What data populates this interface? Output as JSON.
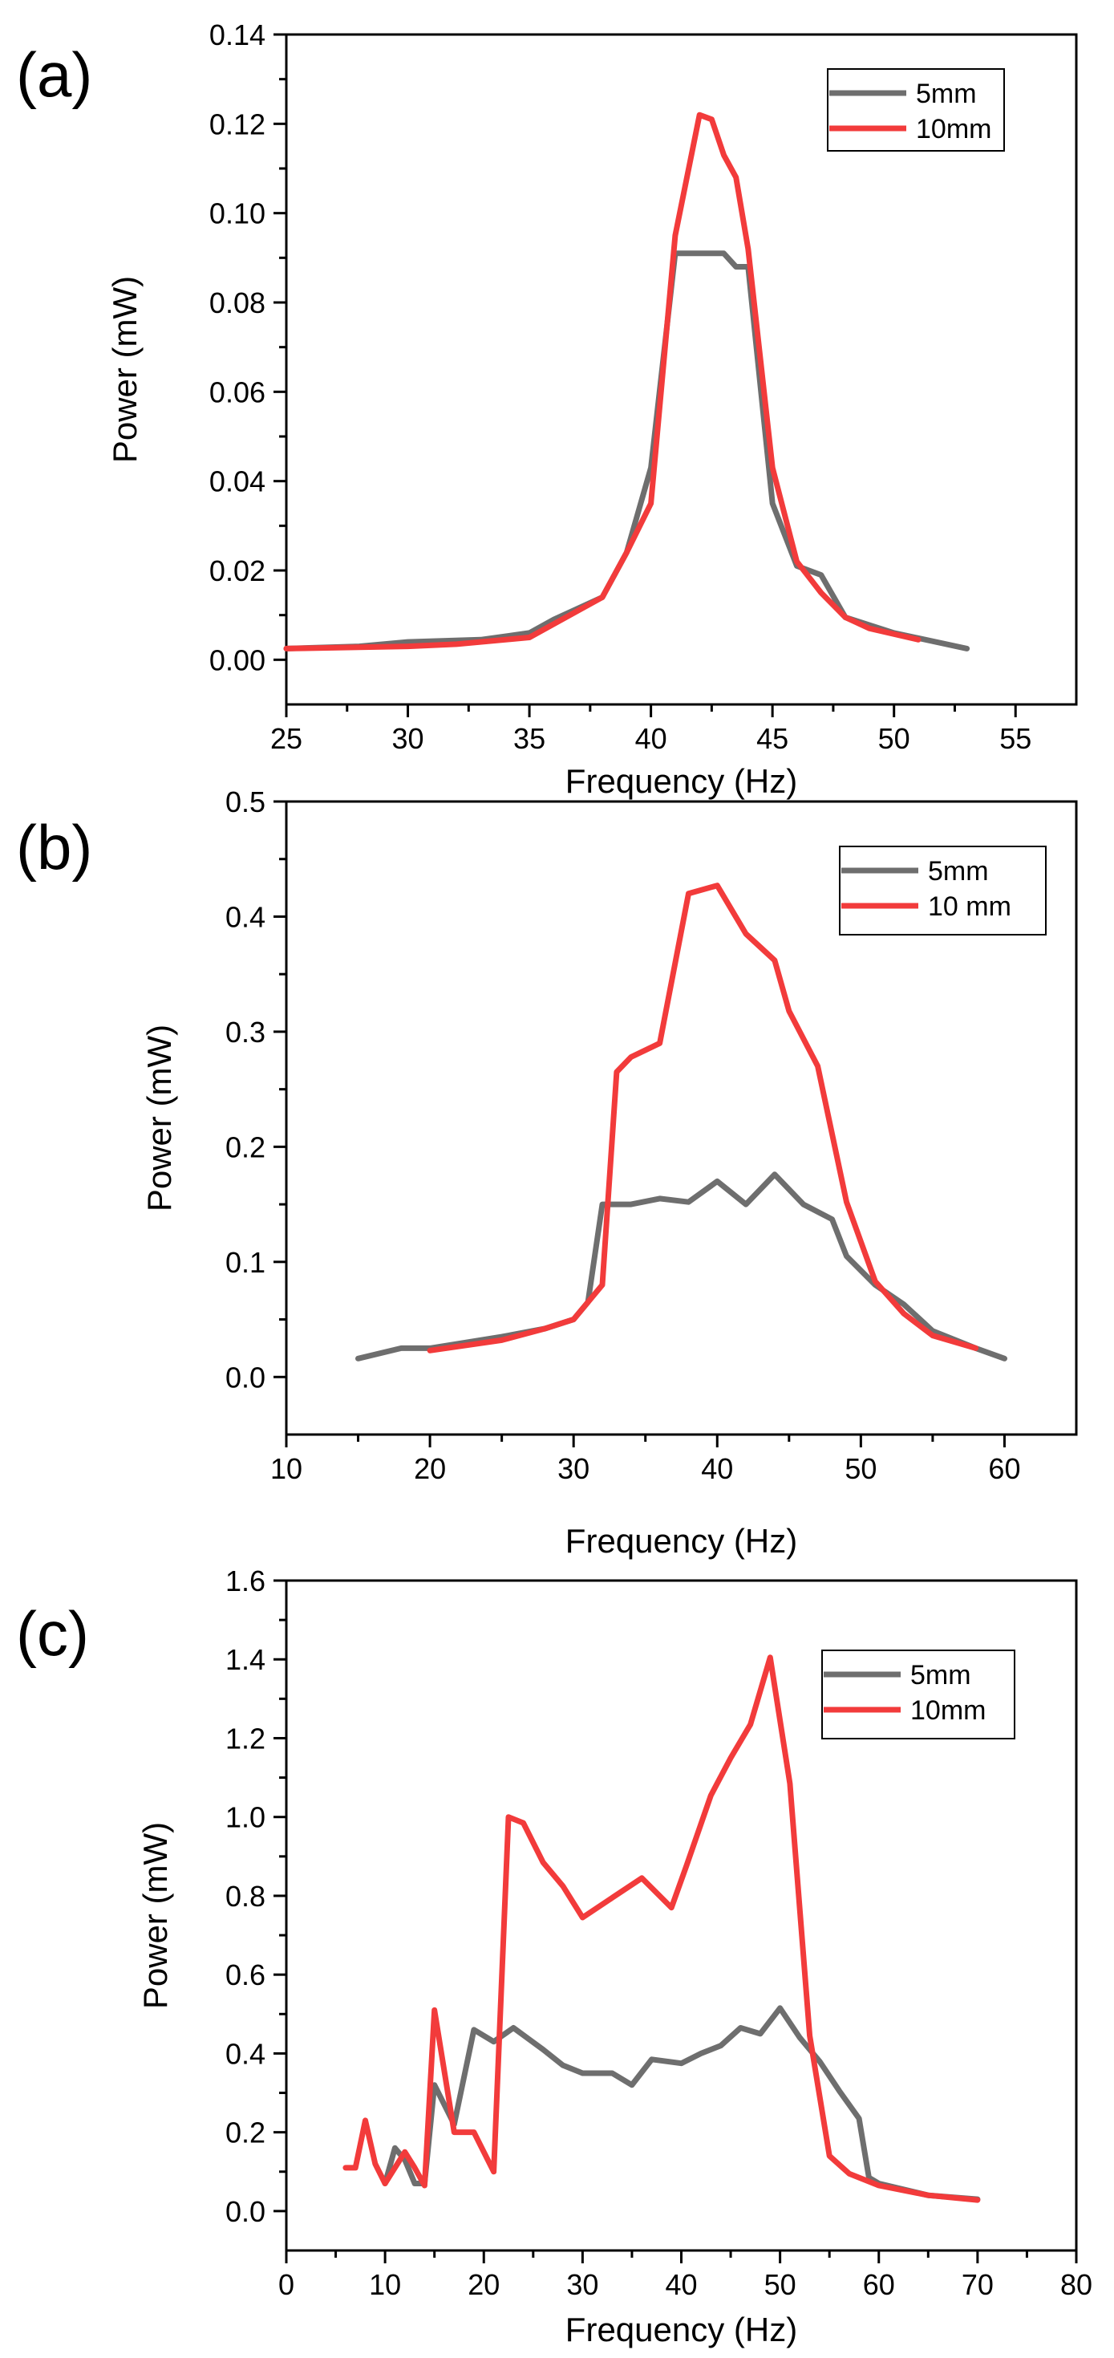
{
  "figure": {
    "colors": {
      "series_5mm": "#6e6e6e",
      "series_10mm": "#f23b3b",
      "axis": "#000000"
    }
  },
  "chart_data": [
    {
      "type": "line",
      "panel_label": "(a)",
      "title": "",
      "xlabel": "Frequency (Hz)",
      "ylabel": "Power (mW)",
      "xlim": [
        25,
        57.5
      ],
      "ylim": [
        -0.01,
        0.14
      ],
      "xticks": [
        25,
        30,
        35,
        40,
        45,
        50,
        55
      ],
      "xtick_labels": [
        "25",
        "30",
        "35",
        "40",
        "45",
        "50",
        "55"
      ],
      "yticks": [
        0.0,
        0.02,
        0.04,
        0.06,
        0.08,
        0.1,
        0.12,
        0.14
      ],
      "ytick_labels": [
        "0.00",
        "0.02",
        "0.04",
        "0.06",
        "0.08",
        "0.10",
        "0.12",
        "0.14"
      ],
      "legend_position": "top-right",
      "series": [
        {
          "name": "5mm",
          "color": "#6e6e6e",
          "x": [
            25,
            28,
            30,
            33,
            35,
            36,
            38,
            39,
            40,
            41,
            42,
            43,
            43.5,
            44,
            45,
            46,
            47,
            48,
            50,
            53
          ],
          "y": [
            0.0025,
            0.003,
            0.004,
            0.0045,
            0.006,
            0.009,
            0.014,
            0.024,
            0.043,
            0.091,
            0.091,
            0.091,
            0.088,
            0.088,
            0.035,
            0.021,
            0.019,
            0.0095,
            0.006,
            0.0025
          ]
        },
        {
          "name": "10mm",
          "color": "#f23b3b",
          "x": [
            25,
            30,
            32,
            35,
            36,
            38,
            39,
            40,
            41,
            42,
            42.5,
            43,
            43.5,
            44,
            45,
            46,
            47,
            48,
            49,
            51
          ],
          "y": [
            0.0025,
            0.003,
            0.0035,
            0.005,
            0.008,
            0.014,
            0.024,
            0.035,
            0.095,
            0.122,
            0.121,
            0.113,
            0.108,
            0.092,
            0.043,
            0.022,
            0.015,
            0.0095,
            0.007,
            0.0045
          ]
        }
      ]
    },
    {
      "type": "line",
      "panel_label": "(b)",
      "title": "",
      "xlabel": "Frequency (Hz)",
      "ylabel": "Power (mW)",
      "xlim": [
        10,
        65
      ],
      "ylim": [
        -0.05,
        0.5
      ],
      "xticks": [
        10,
        20,
        30,
        40,
        50,
        60
      ],
      "xtick_labels": [
        "10",
        "20",
        "30",
        "40",
        "50",
        "60"
      ],
      "yticks": [
        0.0,
        0.1,
        0.2,
        0.3,
        0.4,
        0.5
      ],
      "ytick_labels": [
        "0.0",
        "0.1",
        "0.2",
        "0.3",
        "0.4",
        "0.5"
      ],
      "legend_position": "top-right",
      "series": [
        {
          "name": "5mm",
          "color": "#6e6e6e",
          "x": [
            15,
            18,
            20,
            25,
            28,
            30,
            31,
            32,
            33,
            34,
            36,
            38,
            40,
            42,
            44,
            46,
            48,
            49,
            51,
            53,
            55,
            58,
            60
          ],
          "y": [
            0.016,
            0.025,
            0.025,
            0.035,
            0.042,
            0.05,
            0.065,
            0.15,
            0.15,
            0.15,
            0.155,
            0.152,
            0.17,
            0.15,
            0.176,
            0.15,
            0.137,
            0.105,
            0.08,
            0.063,
            0.04,
            0.025,
            0.016
          ]
        },
        {
          "name": "10 mm",
          "color": "#f23b3b",
          "x": [
            20,
            25,
            28,
            30,
            31,
            32,
            33,
            34,
            36,
            38,
            40,
            42,
            44,
            45,
            47,
            49,
            51,
            53,
            55,
            58
          ],
          "y": [
            0.023,
            0.032,
            0.042,
            0.05,
            0.065,
            0.08,
            0.265,
            0.278,
            0.29,
            0.42,
            0.427,
            0.385,
            0.362,
            0.318,
            0.27,
            0.152,
            0.083,
            0.055,
            0.036,
            0.025
          ]
        }
      ]
    },
    {
      "type": "line",
      "panel_label": "(c)",
      "title": "",
      "xlabel": "Frequency (Hz)",
      "ylabel": "Power (mW)",
      "xlim": [
        0,
        80
      ],
      "ylim": [
        -0.1,
        1.6
      ],
      "xticks": [
        0,
        10,
        20,
        30,
        40,
        50,
        60,
        70,
        80
      ],
      "xtick_labels": [
        "0",
        "10",
        "20",
        "30",
        "40",
        "50",
        "60",
        "70",
        "80"
      ],
      "yticks": [
        0.0,
        0.2,
        0.4,
        0.6,
        0.8,
        1.0,
        1.2,
        1.4,
        1.6
      ],
      "ytick_labels": [
        "0.0",
        "0.2",
        "0.4",
        "0.6",
        "0.8",
        "1.0",
        "1.2",
        "1.4",
        "1.6"
      ],
      "legend_position": "top-right",
      "series": [
        {
          "name": "5mm",
          "color": "#6e6e6e",
          "x": [
            10,
            11,
            12,
            13,
            14,
            15,
            17,
            19,
            21,
            23,
            26,
            28,
            30,
            33,
            35,
            37,
            40,
            42,
            44,
            46,
            48,
            50,
            52,
            54,
            56,
            58,
            59,
            60,
            65,
            70
          ],
          "y": [
            0.07,
            0.16,
            0.13,
            0.07,
            0.07,
            0.32,
            0.22,
            0.46,
            0.43,
            0.465,
            0.41,
            0.37,
            0.35,
            0.35,
            0.32,
            0.385,
            0.375,
            0.4,
            0.42,
            0.465,
            0.45,
            0.515,
            0.44,
            0.38,
            0.305,
            0.235,
            0.085,
            0.07,
            0.04,
            0.03
          ]
        },
        {
          "name": "10mm",
          "color": "#f23b3b",
          "x": [
            6,
            7,
            8,
            9,
            10,
            12,
            13,
            14,
            15,
            17,
            19,
            21,
            22.5,
            24,
            26,
            28,
            30,
            33,
            36,
            39,
            40.5,
            43,
            45,
            47,
            49,
            51,
            53,
            55,
            57,
            60,
            65,
            70
          ],
          "y": [
            0.11,
            0.11,
            0.23,
            0.12,
            0.07,
            0.15,
            0.11,
            0.065,
            0.51,
            0.2,
            0.2,
            0.1,
            1.0,
            0.985,
            0.885,
            0.825,
            0.745,
            0.795,
            0.845,
            0.77,
            0.875,
            1.055,
            1.15,
            1.235,
            1.405,
            1.085,
            0.445,
            0.14,
            0.095,
            0.065,
            0.04,
            0.028
          ]
        }
      ]
    }
  ]
}
